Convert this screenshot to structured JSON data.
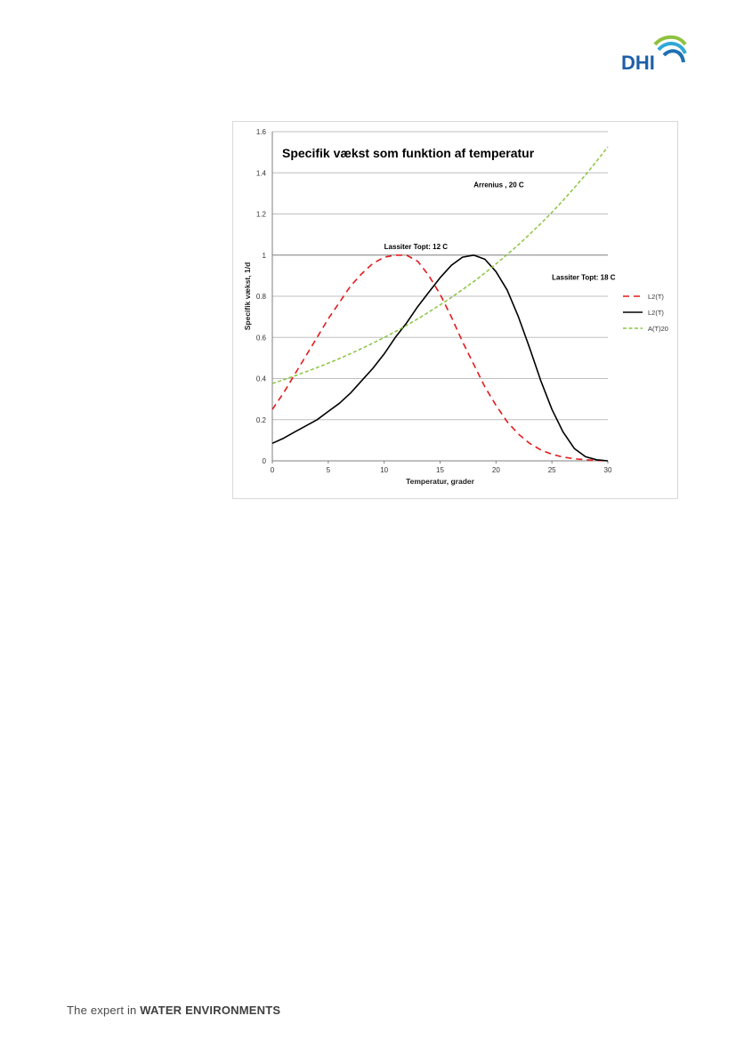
{
  "logo": {
    "text": "DHI",
    "colors": [
      "#8fc13f",
      "#2ea8d8",
      "#1f6fb3"
    ]
  },
  "footer": {
    "prefix": "The expert in ",
    "emphasis": "WATER ENVIRONMENTS"
  },
  "colors": {
    "red": "#e21a1a",
    "black": "#000000",
    "green": "#8ac43f",
    "grid": "#bfbfbf"
  },
  "chart_data": {
    "type": "line",
    "title": "Specifik vækst som funktion af temperatur",
    "xlabel": "Temperatur, grader",
    "ylabel": "Specifik vækst, 1/d",
    "xlim": [
      0,
      30
    ],
    "ylim": [
      0,
      1.6
    ],
    "x_ticks": [
      0,
      5,
      10,
      15,
      20,
      25,
      30
    ],
    "y_ticks": [
      0,
      0.2,
      0.4,
      0.6,
      0.8,
      1,
      1.2,
      1.4,
      1.6
    ],
    "grid": true,
    "legend_position": "right",
    "annotations": [
      {
        "text": "Arrenius  , 20 C",
        "x": 18,
        "y": 1.33
      },
      {
        "text": "Lassiter  Topt: 12 C",
        "x": 10,
        "y": 1.03
      },
      {
        "text": "Lassiter  Topt: 18 C",
        "x": 25,
        "y": 0.88
      }
    ],
    "x": [
      0,
      1,
      2,
      3,
      4,
      5,
      6,
      7,
      8,
      9,
      10,
      11,
      12,
      13,
      14,
      15,
      16,
      17,
      18,
      19,
      20,
      21,
      22,
      23,
      24,
      25,
      26,
      27,
      28,
      29,
      30
    ],
    "series": [
      {
        "name": "L2(T)",
        "style": "dashed",
        "color": "#e21a1a",
        "values": [
          0.25,
          0.33,
          0.42,
          0.51,
          0.6,
          0.69,
          0.77,
          0.85,
          0.91,
          0.96,
          0.99,
          1.0,
          1.0,
          0.97,
          0.9,
          0.81,
          0.7,
          0.58,
          0.47,
          0.36,
          0.27,
          0.19,
          0.13,
          0.085,
          0.053,
          0.032,
          0.018,
          0.01,
          0.005,
          0.002,
          0.0
        ]
      },
      {
        "name": "L2(T)",
        "style": "solid",
        "color": "#000000",
        "values": [
          0.085,
          0.11,
          0.14,
          0.17,
          0.2,
          0.24,
          0.28,
          0.33,
          0.39,
          0.45,
          0.52,
          0.6,
          0.67,
          0.75,
          0.82,
          0.89,
          0.95,
          0.99,
          1.0,
          0.98,
          0.92,
          0.83,
          0.7,
          0.55,
          0.39,
          0.25,
          0.14,
          0.06,
          0.02,
          0.005,
          0.0
        ]
      },
      {
        "name": "A(T)20",
        "style": "dotted",
        "color": "#8ac43f",
        "values": [
          0.376,
          0.394,
          0.413,
          0.433,
          0.453,
          0.475,
          0.497,
          0.521,
          0.546,
          0.572,
          0.6,
          0.628,
          0.658,
          0.69,
          0.723,
          0.758,
          0.794,
          0.832,
          0.871,
          0.913,
          0.957,
          1.003,
          1.05,
          1.101,
          1.153,
          1.208,
          1.266,
          1.327,
          1.39,
          1.457,
          1.526
        ]
      }
    ]
  }
}
